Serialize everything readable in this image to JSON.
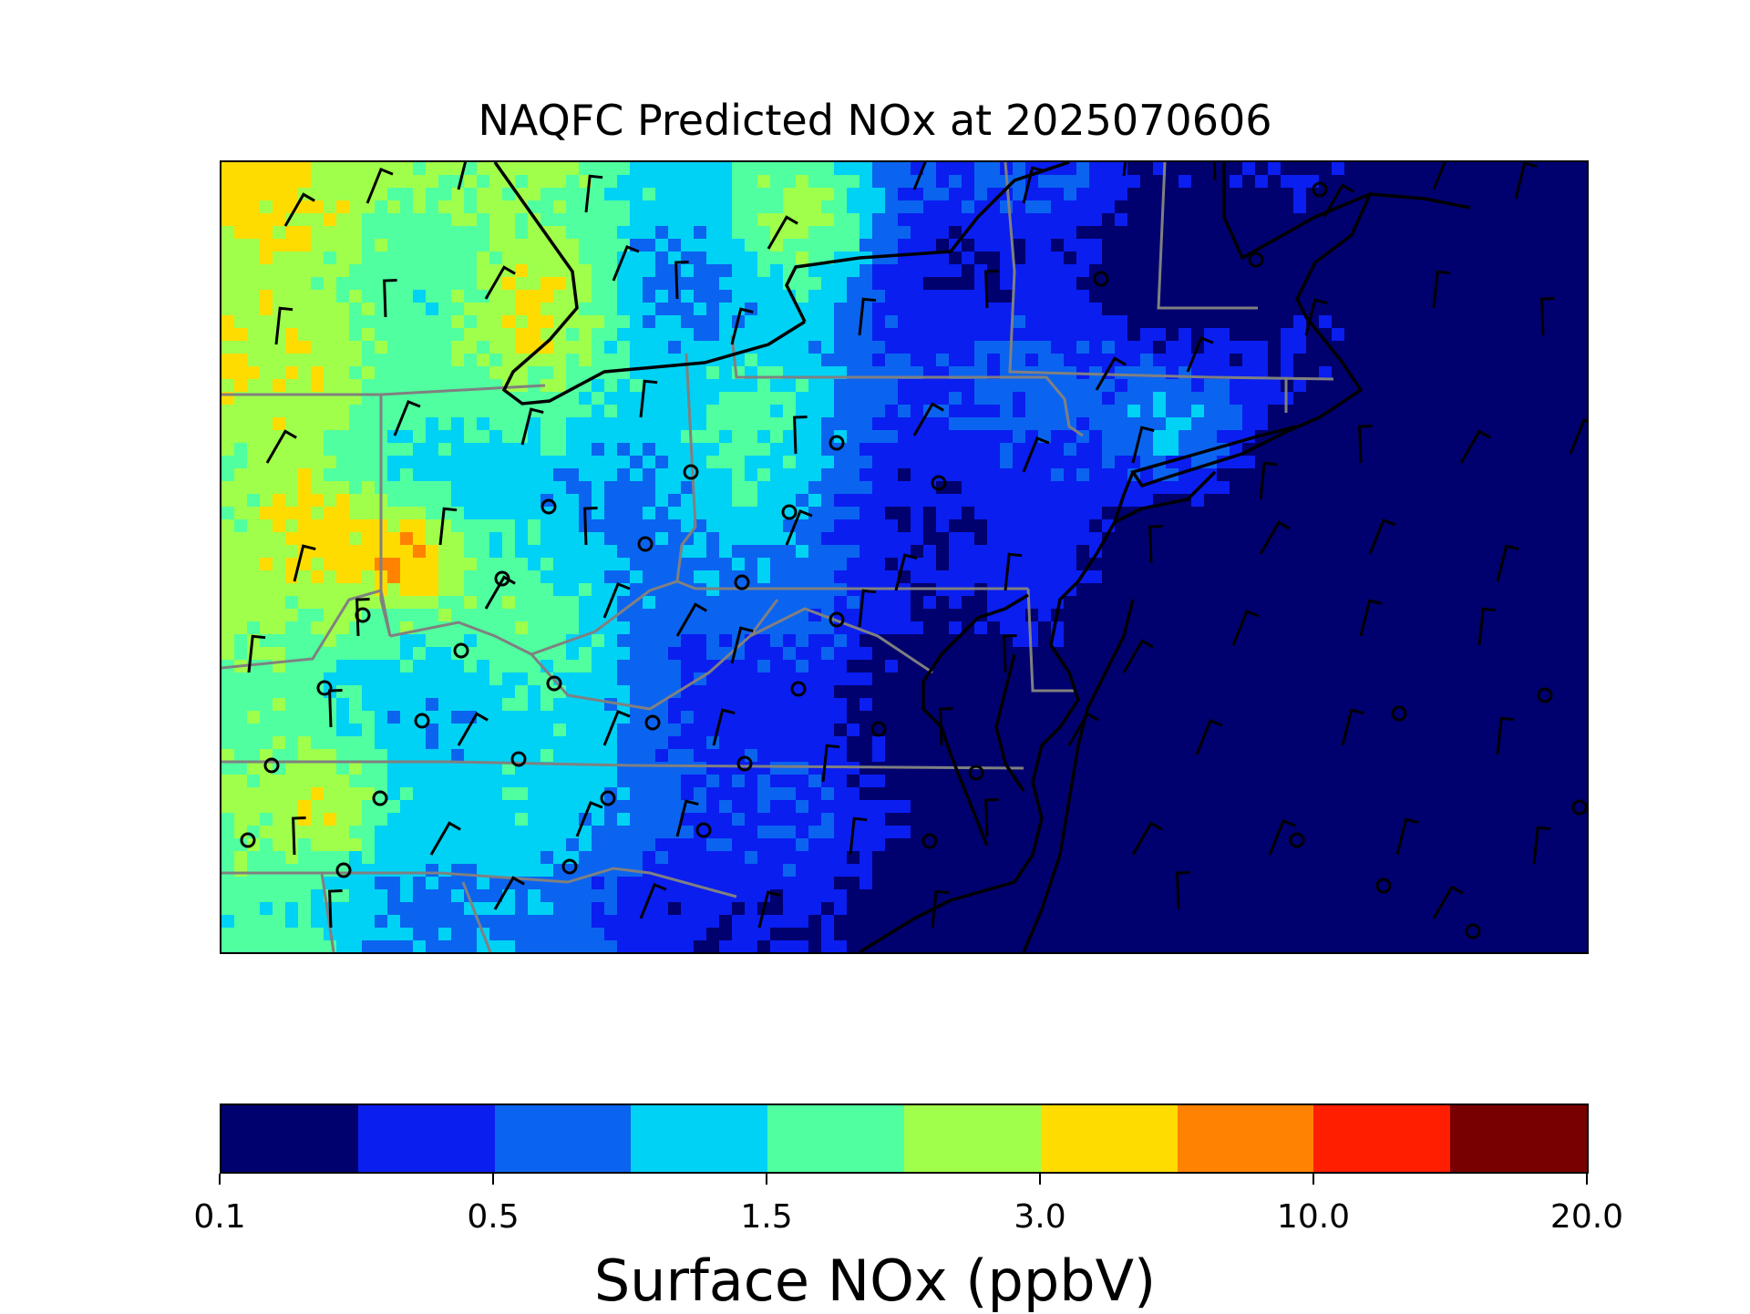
{
  "title": "NAQFC Predicted NOx at 2025070606",
  "colorbar": {
    "label": "Surface NOx (ppbV)",
    "tick_labels": [
      "0.1",
      "0.5",
      "1.5",
      "3.0",
      "10.0",
      "20.0"
    ],
    "colors": [
      "#00006e",
      "#0a1ef0",
      "#0a64f0",
      "#00d2f5",
      "#50ffa0",
      "#a0ff4b",
      "#ffdc00",
      "#ff8200",
      "#ff1e00",
      "#780000"
    ]
  },
  "map": {
    "variable": "Surface NOx",
    "units": "ppbV",
    "overlays": [
      "state-borders",
      "coastline",
      "wind-barbs",
      "station-markers"
    ]
  }
}
